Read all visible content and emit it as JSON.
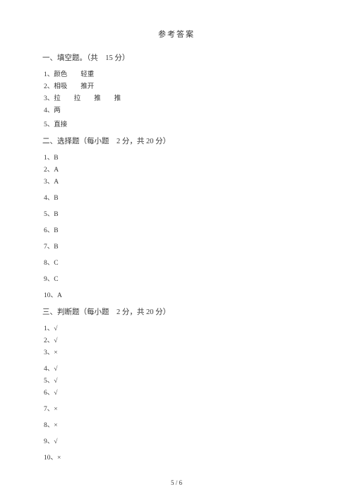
{
  "title": "参考答案",
  "section1": {
    "header": "一、填空题。（共　15 分）",
    "items": [
      "1、颜色　　轻重",
      "2、相吸　　推开",
      "3、拉　　拉　　推　　推",
      "4、两",
      "5、直接"
    ]
  },
  "section2": {
    "header": "二、选择题（每小题　2 分，共 20 分）",
    "items": [
      "1、B",
      "2、A",
      "3、A",
      "4、B",
      "5、B",
      "6、B",
      "7、B",
      "8、C",
      "9、C",
      "10、A"
    ]
  },
  "section3": {
    "header": "三、判断题（每小题　2 分，共 20 分）",
    "items": [
      "1、√",
      "2、√",
      "3、×",
      "4、√",
      "5、√",
      "6、√",
      "7、×",
      "8、×",
      "9、√",
      "10、×"
    ]
  },
  "pageNum": "5 / 6"
}
